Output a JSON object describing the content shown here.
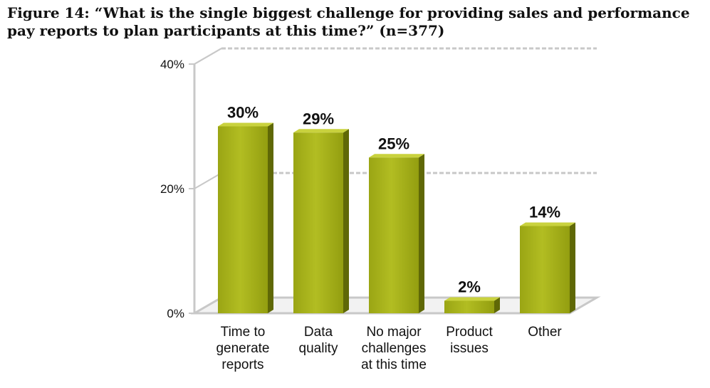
{
  "chart_data": {
    "type": "bar",
    "title": "Figure 14: “What is the single biggest challenge for providing sales and performance pay reports to plan participants at this time?” (n=377)",
    "categories": [
      [
        "Time to",
        "generate",
        "reports"
      ],
      [
        "Data",
        "quality"
      ],
      [
        "No major",
        "challenges",
        "at this time"
      ],
      [
        "Product",
        "issues"
      ],
      [
        "Other"
      ]
    ],
    "values": [
      30,
      29,
      25,
      2,
      14
    ],
    "data_labels": [
      "30%",
      "29%",
      "25%",
      "2%",
      "14%"
    ],
    "yticks": [
      "0%",
      "20%",
      "40%"
    ],
    "ytick_values": [
      0,
      20,
      40
    ],
    "ylim": [
      0,
      40
    ],
    "xlabel": "",
    "ylabel": "",
    "grid": true,
    "colors": {
      "bar_front": "#a8b41a",
      "bar_side": "#5f6806",
      "bar_top": "#c9d23e",
      "grid": "#c8c8c8"
    }
  }
}
